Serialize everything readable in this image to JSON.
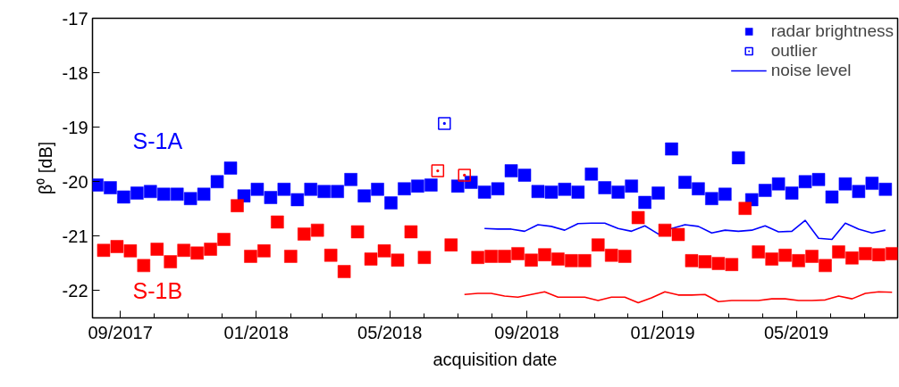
{
  "chart_data": {
    "type": "scatter",
    "xlabel": "acquisition date",
    "ylabel": "β⁰ [dB]",
    "xlim": [
      "2017-08-07",
      "2019-07-31"
    ],
    "ylim": [
      -22.5,
      -17
    ],
    "yticks": [
      -22,
      -21,
      -20,
      -19,
      -18,
      -17
    ],
    "xticks": [
      {
        "value": "2017-09-01",
        "label": "09/2017"
      },
      {
        "value": "2017-10-01",
        "label": null
      },
      {
        "value": "2017-11-01",
        "label": null
      },
      {
        "value": "2017-12-01",
        "label": null
      },
      {
        "value": "2018-01-01",
        "label": "01/2018"
      },
      {
        "value": "2018-02-01",
        "label": null
      },
      {
        "value": "2018-03-01",
        "label": null
      },
      {
        "value": "2018-04-01",
        "label": null
      },
      {
        "value": "2018-05-01",
        "label": "05/2018"
      },
      {
        "value": "2018-06-01",
        "label": null
      },
      {
        "value": "2018-07-01",
        "label": null
      },
      {
        "value": "2018-08-01",
        "label": null
      },
      {
        "value": "2018-09-01",
        "label": "09/2018"
      },
      {
        "value": "2018-10-01",
        "label": null
      },
      {
        "value": "2018-11-01",
        "label": null
      },
      {
        "value": "2018-12-01",
        "label": null
      },
      {
        "value": "2019-01-01",
        "label": "01/2019"
      },
      {
        "value": "2019-02-01",
        "label": null
      },
      {
        "value": "2019-03-01",
        "label": null
      },
      {
        "value": "2019-04-01",
        "label": null
      },
      {
        "value": "2019-05-01",
        "label": "05/2019"
      },
      {
        "value": "2019-06-01",
        "label": null
      },
      {
        "value": "2019-07-01",
        "label": null
      }
    ],
    "legend": "top right",
    "grid": false,
    "annotations": [
      "S-1A",
      "S-1B"
    ],
    "series": [
      {
        "name": "radar brightness",
        "marker": "square",
        "color": "#0000ff",
        "x": [
          "2017-08-11",
          "2017-08-23",
          "2017-09-04",
          "2017-09-16",
          "2017-09-28",
          "2017-10-10",
          "2017-10-22",
          "2017-11-03",
          "2017-11-15",
          "2017-11-27",
          "2017-12-09",
          "2017-12-21",
          "2018-01-02",
          "2018-01-14",
          "2018-01-26",
          "2018-02-07",
          "2018-02-19",
          "2018-03-03",
          "2018-03-15",
          "2018-03-27",
          "2018-04-08",
          "2018-04-20",
          "2018-05-02",
          "2018-05-14",
          "2018-05-26",
          "2018-06-07",
          "2018-06-19",
          "2018-07-01",
          "2018-07-13",
          "2018-07-25",
          "2018-08-06",
          "2018-08-18",
          "2018-08-30",
          "2018-09-11",
          "2018-09-23",
          "2018-10-05",
          "2018-10-17",
          "2018-10-29",
          "2018-11-10",
          "2018-11-22",
          "2018-12-04",
          "2018-12-16",
          "2018-12-28",
          "2019-01-09",
          "2019-01-21",
          "2019-02-02",
          "2019-02-14",
          "2019-02-26",
          "2019-03-10",
          "2019-03-22",
          "2019-04-03",
          "2019-04-15",
          "2019-04-27",
          "2019-05-09",
          "2019-05-21",
          "2019-06-02",
          "2019-06-14",
          "2019-06-26",
          "2019-07-08",
          "2019-07-20"
        ],
        "values": [
          -20.06,
          -20.11,
          -20.28,
          -20.21,
          -20.18,
          -20.23,
          -20.23,
          -20.31,
          -20.23,
          -20.0,
          -19.75,
          -20.26,
          -20.14,
          -20.29,
          -20.14,
          -20.33,
          -20.14,
          -20.18,
          -20.18,
          -19.96,
          -20.26,
          -20.14,
          -20.39,
          -20.13,
          -20.08,
          -20.06,
          null,
          -20.08,
          -20.01,
          -20.19,
          -20.13,
          -19.8,
          -19.88,
          -20.18,
          -20.19,
          -20.14,
          -20.19,
          -19.86,
          -20.11,
          -20.19,
          -20.08,
          -20.38,
          -20.21,
          -19.4,
          -20.01,
          -20.13,
          -20.31,
          -20.23,
          -19.56,
          -20.33,
          -20.16,
          -20.04,
          -20.21,
          -20.0,
          -19.96,
          -20.28,
          -20.04,
          -20.18,
          -20.03,
          -20.14
        ]
      },
      {
        "name": "outlier",
        "marker": "square_dot",
        "color": "#0000ff",
        "x": [
          "2018-06-19"
        ],
        "values": [
          -18.93
        ]
      },
      {
        "name": "noise level",
        "type": "line",
        "line_style": "solid",
        "color": "#0000ff",
        "x": [
          "2018-07-25",
          "2018-08-06",
          "2018-08-18",
          "2018-08-30",
          "2018-09-11",
          "2018-09-23",
          "2018-10-05",
          "2018-10-17",
          "2018-10-29",
          "2018-11-10",
          "2018-11-22",
          "2018-12-04",
          "2018-12-16",
          "2018-12-28",
          "2019-01-09",
          "2019-01-21",
          "2019-02-02",
          "2019-02-14",
          "2019-02-26",
          "2019-03-10",
          "2019-03-22",
          "2019-04-03",
          "2019-04-15",
          "2019-04-27",
          "2019-05-09",
          "2019-05-21",
          "2019-06-02",
          "2019-06-14",
          "2019-06-26",
          "2019-07-08",
          "2019-07-20"
        ],
        "values": [
          -20.86,
          -20.87,
          -20.87,
          -20.91,
          -20.79,
          -20.82,
          -20.89,
          -20.77,
          -20.76,
          -20.76,
          -20.86,
          -20.91,
          -20.81,
          -20.96,
          -20.86,
          -20.79,
          -20.82,
          -20.94,
          -20.89,
          -20.91,
          -20.89,
          -20.81,
          -20.92,
          -20.91,
          -20.71,
          -21.04,
          -21.06,
          -20.76,
          -20.87,
          -20.94,
          -20.89
        ]
      },
      {
        "marker": "square",
        "color": "#ff0000",
        "x": [
          "2017-08-17",
          "2017-08-29",
          "2017-09-10",
          "2017-09-22",
          "2017-10-04",
          "2017-10-16",
          "2017-10-28",
          "2017-11-09",
          "2017-11-21",
          "2017-12-03",
          "2017-12-15",
          "2017-12-27",
          "2018-01-08",
          "2018-01-20",
          "2018-02-01",
          "2018-02-13",
          "2018-02-25",
          "2018-03-09",
          "2018-03-21",
          "2018-04-02",
          "2018-04-14",
          "2018-04-26",
          "2018-05-08",
          "2018-05-20",
          "2018-06-01",
          "2018-06-13",
          "2018-06-25",
          "2018-07-07",
          "2018-07-19",
          "2018-07-31",
          "2018-08-12",
          "2018-08-24",
          "2018-09-05",
          "2018-09-17",
          "2018-09-29",
          "2018-10-11",
          "2018-10-23",
          "2018-11-04",
          "2018-11-16",
          "2018-11-28",
          "2018-12-10",
          "2018-12-22",
          "2019-01-03",
          "2019-01-15",
          "2019-01-27",
          "2019-02-08",
          "2019-02-20",
          "2019-03-04",
          "2019-03-16",
          "2019-03-28",
          "2019-04-09",
          "2019-04-21",
          "2019-05-03",
          "2019-05-15",
          "2019-05-27",
          "2019-06-08",
          "2019-06-20",
          "2019-07-02",
          "2019-07-14",
          "2019-07-26"
        ],
        "values": [
          -21.26,
          -21.19,
          -21.27,
          -21.54,
          -21.24,
          -21.47,
          -21.26,
          -21.31,
          -21.24,
          -21.06,
          -20.44,
          -21.37,
          -21.27,
          -20.74,
          -21.37,
          -20.96,
          -20.89,
          -21.35,
          -21.65,
          -20.92,
          -21.42,
          -21.27,
          -21.44,
          -20.92,
          -21.39,
          null,
          -21.16,
          null,
          -21.39,
          -21.37,
          -21.37,
          -21.32,
          -21.44,
          -21.34,
          -21.42,
          -21.45,
          -21.45,
          -21.16,
          -21.35,
          -21.37,
          -20.66,
          null,
          -20.89,
          -20.97,
          -21.45,
          -21.47,
          -21.5,
          -21.52,
          -20.49,
          -21.29,
          -21.42,
          -21.35,
          -21.45,
          -21.37,
          -21.54,
          -21.29,
          -21.4,
          -21.32,
          -21.34,
          -21.32
        ]
      },
      {
        "marker": "square_dot",
        "color": "#ff0000",
        "x": [
          "2018-06-13",
          "2018-07-07"
        ],
        "values": [
          -19.8,
          -19.88
        ]
      },
      {
        "type": "line",
        "line_style": "solid",
        "color": "#ff0000",
        "x": [
          "2018-07-07",
          "2018-07-19",
          "2018-07-31",
          "2018-08-12",
          "2018-08-24",
          "2018-09-05",
          "2018-09-17",
          "2018-09-29",
          "2018-10-11",
          "2018-10-23",
          "2018-11-04",
          "2018-11-16",
          "2018-11-28",
          "2018-12-10",
          "2018-12-22",
          "2019-01-03",
          "2019-01-15",
          "2019-01-27",
          "2019-02-08",
          "2019-02-20",
          "2019-03-04",
          "2019-03-16",
          "2019-03-28",
          "2019-04-09",
          "2019-04-21",
          "2019-05-03",
          "2019-05-15",
          "2019-05-27",
          "2019-06-08",
          "2019-06-20",
          "2019-07-02",
          "2019-07-14",
          "2019-07-26"
        ],
        "values": [
          -22.07,
          -22.05,
          -22.05,
          -22.1,
          -22.12,
          -22.07,
          -22.02,
          -22.12,
          -22.12,
          -22.12,
          -22.18,
          -22.12,
          -22.12,
          -22.22,
          -22.13,
          -22.02,
          -22.08,
          -22.08,
          -22.07,
          -22.2,
          -22.18,
          -22.18,
          -22.18,
          -22.15,
          -22.15,
          -22.18,
          -22.18,
          -22.17,
          -22.1,
          -22.15,
          -22.05,
          -22.02,
          -22.03
        ]
      }
    ]
  }
}
